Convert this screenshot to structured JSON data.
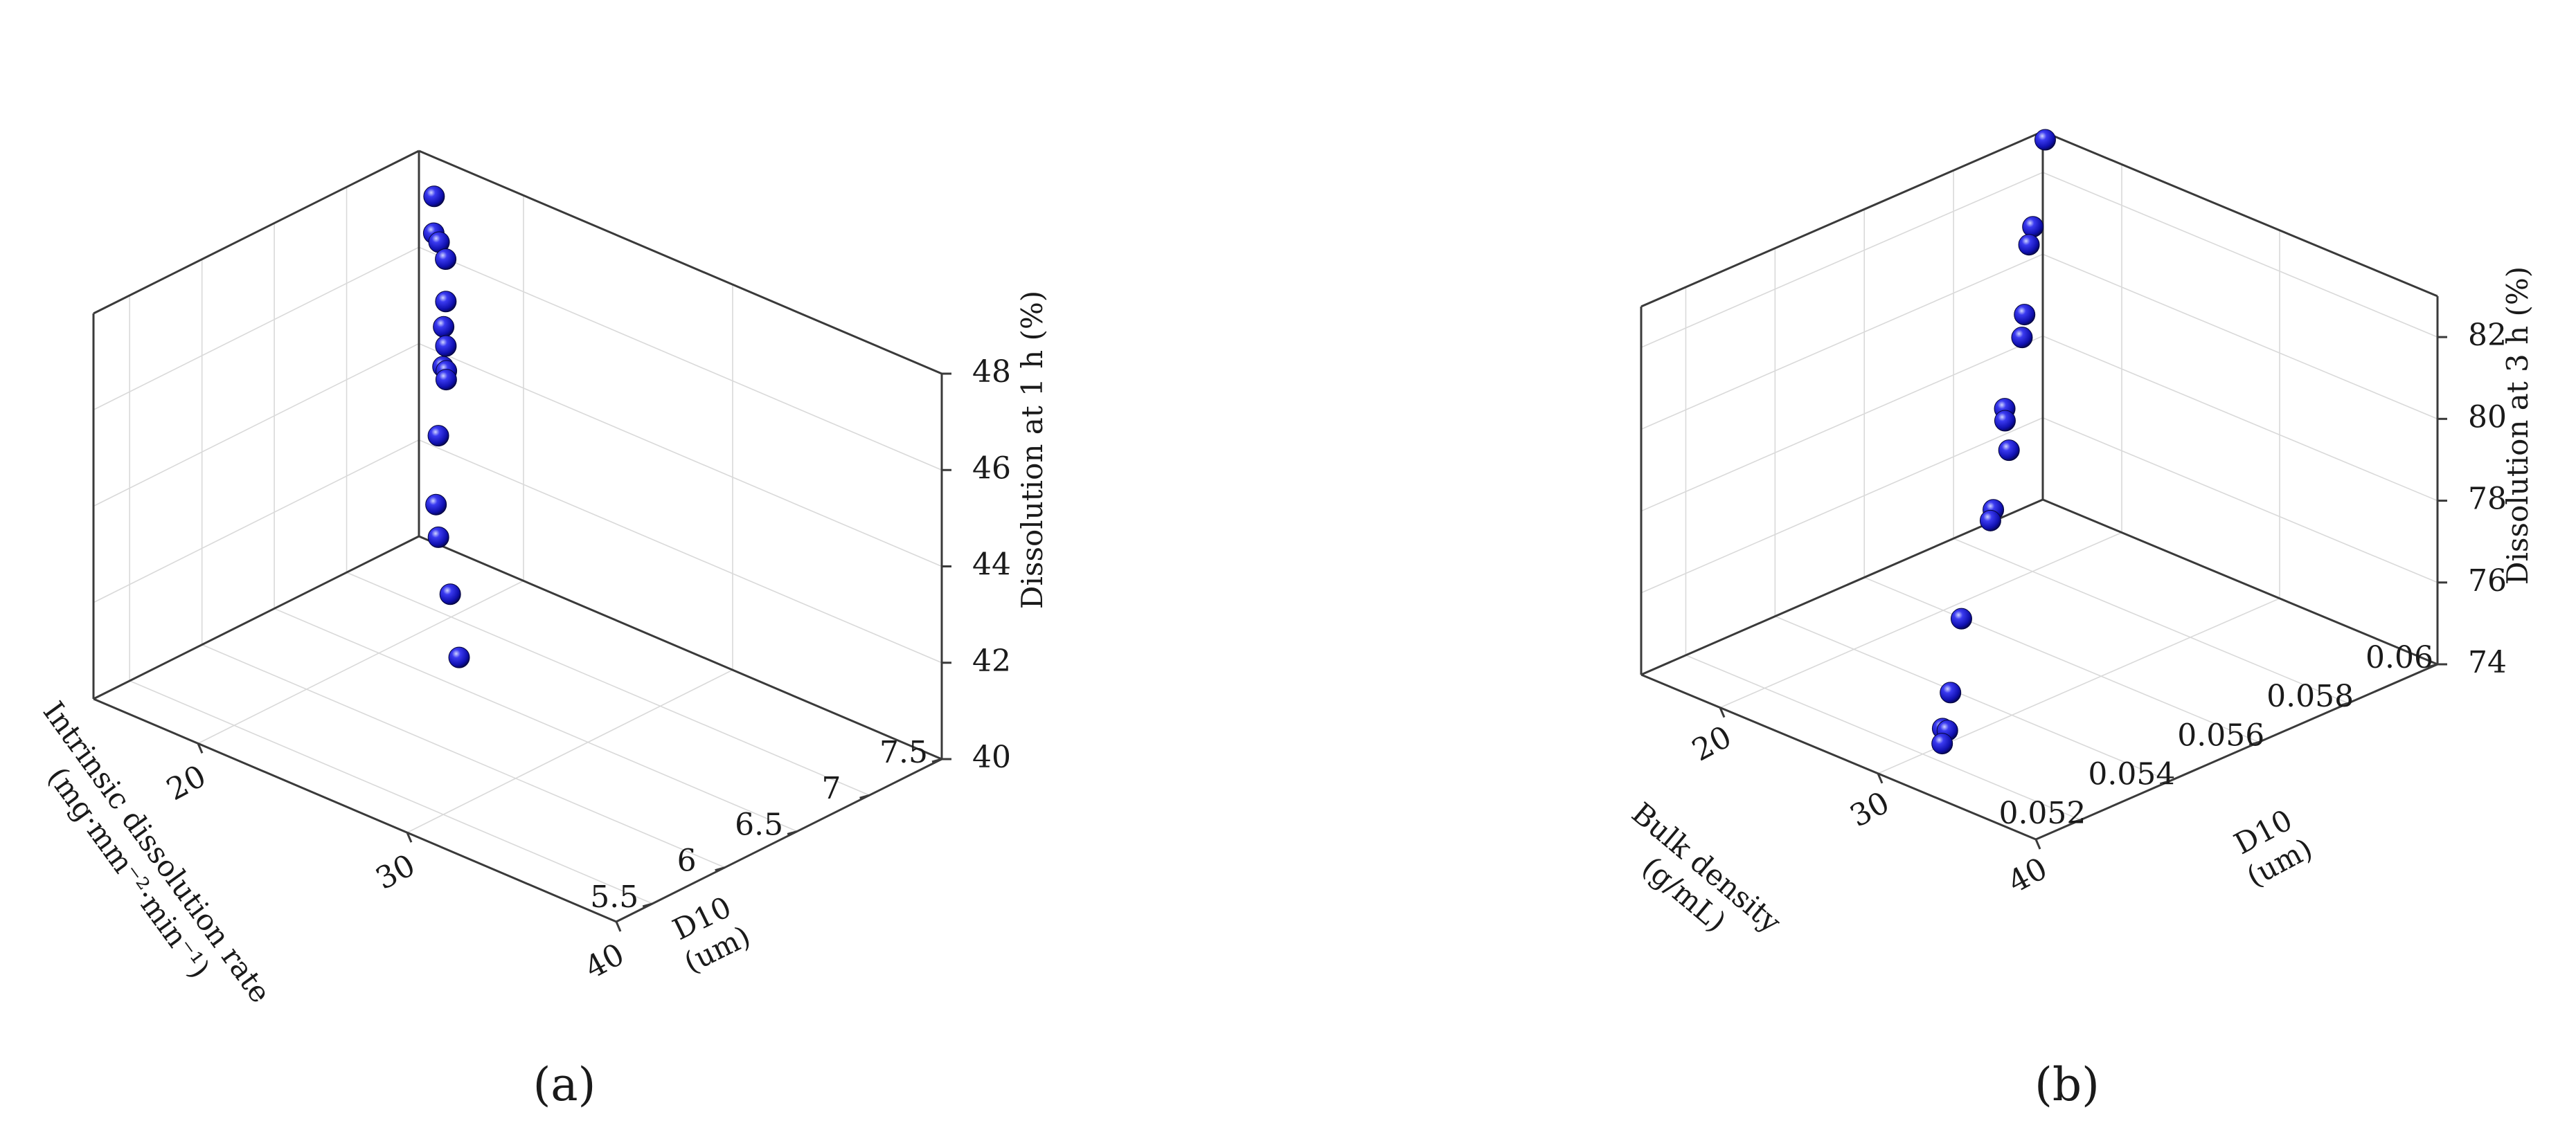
{
  "chart_data": [
    {
      "type": "scatter",
      "panel_label": "(a)",
      "marker_color": "#1a1acc",
      "grid": true,
      "axes": {
        "x": {
          "label": [
            "Intrinsic dissolution rate",
            "(mg·mm⁻²·min⁻¹)"
          ],
          "range": [
            5.25,
            7.5
          ],
          "ticks": [
            5.5,
            6,
            6.5,
            7,
            7.5
          ],
          "tick_labels": [
            "5.5",
            "6",
            "6.5",
            "7",
            "7.5"
          ]
        },
        "y": {
          "label": [
            "D10",
            "(um)"
          ],
          "range": [
            15,
            40
          ],
          "ticks": [
            20,
            30,
            40
          ],
          "tick_labels": [
            "20",
            "30",
            "40"
          ]
        },
        "z": {
          "label": [
            "Dissolution at 1 h (%)"
          ],
          "range": [
            40,
            48
          ],
          "ticks": [
            40,
            42,
            44,
            46,
            48
          ],
          "tick_labels": [
            "40",
            "42",
            "44",
            "46",
            "48"
          ]
        }
      },
      "points": [
        {
          "x": 7.46,
          "y": 16.0,
          "z": 47.3
        },
        {
          "x": 7.4,
          "y": 16.4,
          "z": 46.7
        },
        {
          "x": 7.35,
          "y": 17.0,
          "z": 46.7
        },
        {
          "x": 7.28,
          "y": 17.8,
          "z": 46.6
        },
        {
          "x": 7.18,
          "y": 18.5,
          "z": 46.0
        },
        {
          "x": 7.02,
          "y": 19.5,
          "z": 45.9
        },
        {
          "x": 6.92,
          "y": 20.3,
          "z": 45.8
        },
        {
          "x": 6.9,
          "y": 20.3,
          "z": 45.4
        },
        {
          "x": 6.88,
          "y": 20.6,
          "z": 45.4
        },
        {
          "x": 6.85,
          "y": 20.8,
          "z": 45.3
        },
        {
          "x": 6.55,
          "y": 22.5,
          "z": 44.9
        },
        {
          "x": 6.1,
          "y": 25.5,
          "z": 44.7
        },
        {
          "x": 5.9,
          "y": 27.0,
          "z": 44.6
        },
        {
          "x": 5.62,
          "y": 29.5,
          "z": 44.3
        },
        {
          "x": 5.32,
          "y": 32.0,
          "z": 43.9
        }
      ]
    },
    {
      "type": "scatter",
      "panel_label": "(b)",
      "marker_color": "#1a1acc",
      "grid": true,
      "axes": {
        "x": {
          "label": [
            "Bulk density",
            "(g/mL)"
          ],
          "range": [
            0.051,
            0.06
          ],
          "ticks": [
            0.052,
            0.054,
            0.056,
            0.058,
            0.06
          ],
          "tick_labels": [
            "0.052",
            "0.054",
            "0.056",
            "0.058",
            "0.06"
          ]
        },
        "y": {
          "label": [
            "D10",
            "(um)"
          ],
          "range": [
            15,
            40
          ],
          "ticks": [
            20,
            30,
            40
          ],
          "tick_labels": [
            "20",
            "30",
            "40"
          ]
        },
        "z": {
          "label": [
            "Dissolution at 3 h (%)"
          ],
          "range": [
            74,
            83
          ],
          "ticks": [
            74,
            76,
            78,
            80,
            82
          ],
          "tick_labels": [
            "74",
            "76",
            "78",
            "80",
            "82"
          ]
        }
      },
      "points": [
        {
          "x": 0.0597,
          "y": 16.0,
          "z": 83.1
        },
        {
          "x": 0.059,
          "y": 17.2,
          "z": 81.5
        },
        {
          "x": 0.0587,
          "y": 17.8,
          "z": 81.3
        },
        {
          "x": 0.058,
          "y": 19.5,
          "z": 80.2
        },
        {
          "x": 0.0578,
          "y": 19.9,
          "z": 79.8
        },
        {
          "x": 0.0566,
          "y": 22.2,
          "z": 79.0
        },
        {
          "x": 0.0565,
          "y": 22.5,
          "z": 78.8
        },
        {
          "x": 0.0562,
          "y": 23.6,
          "z": 78.4
        },
        {
          "x": 0.055,
          "y": 26.0,
          "z": 77.9
        },
        {
          "x": 0.0549,
          "y": 26.1,
          "z": 77.7
        },
        {
          "x": 0.0534,
          "y": 28.5,
          "z": 76.4
        },
        {
          "x": 0.0522,
          "y": 31.2,
          "z": 75.6
        },
        {
          "x": 0.0516,
          "y": 32.4,
          "z": 75.2
        },
        {
          "x": 0.0516,
          "y": 32.7,
          "z": 75.2
        },
        {
          "x": 0.0512,
          "y": 33.5,
          "z": 75.2
        }
      ]
    }
  ]
}
